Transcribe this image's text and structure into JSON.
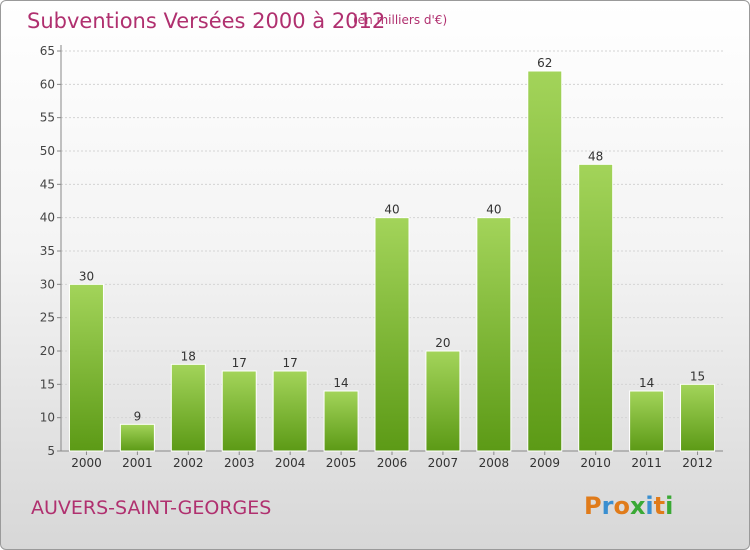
{
  "header": {
    "title": "Subventions Versées 2000 à 2012",
    "subtitle": "(en milliers d'€)"
  },
  "footer": {
    "commune": "AUVERS-SAINT-GEORGES",
    "logo": "Proxiti"
  },
  "colors": {
    "title": "#b0306f",
    "bar_light": "#a3d45a",
    "bar_dark": "#5c9a16",
    "logo_letters": [
      "#e07b1a",
      "#3a8fd0",
      "#e07b1a",
      "#3aa935",
      "#3a8fd0",
      "#e07b1a",
      "#3aa935"
    ]
  },
  "chart_data": {
    "type": "bar",
    "title": "Subventions Versées 2000 à 2012",
    "subtitle": "(en milliers d'€)",
    "categories": [
      "2000",
      "2001",
      "2002",
      "2003",
      "2004",
      "2005",
      "2006",
      "2007",
      "2008",
      "2009",
      "2010",
      "2011",
      "2012"
    ],
    "values": [
      30,
      9,
      18,
      17,
      17,
      14,
      40,
      20,
      40,
      62,
      48,
      14,
      15
    ],
    "ylim": [
      5,
      65
    ],
    "yticks": [
      5,
      10,
      15,
      20,
      25,
      30,
      35,
      40,
      45,
      50,
      55,
      60,
      65
    ],
    "grid": true,
    "data_labels": true
  }
}
